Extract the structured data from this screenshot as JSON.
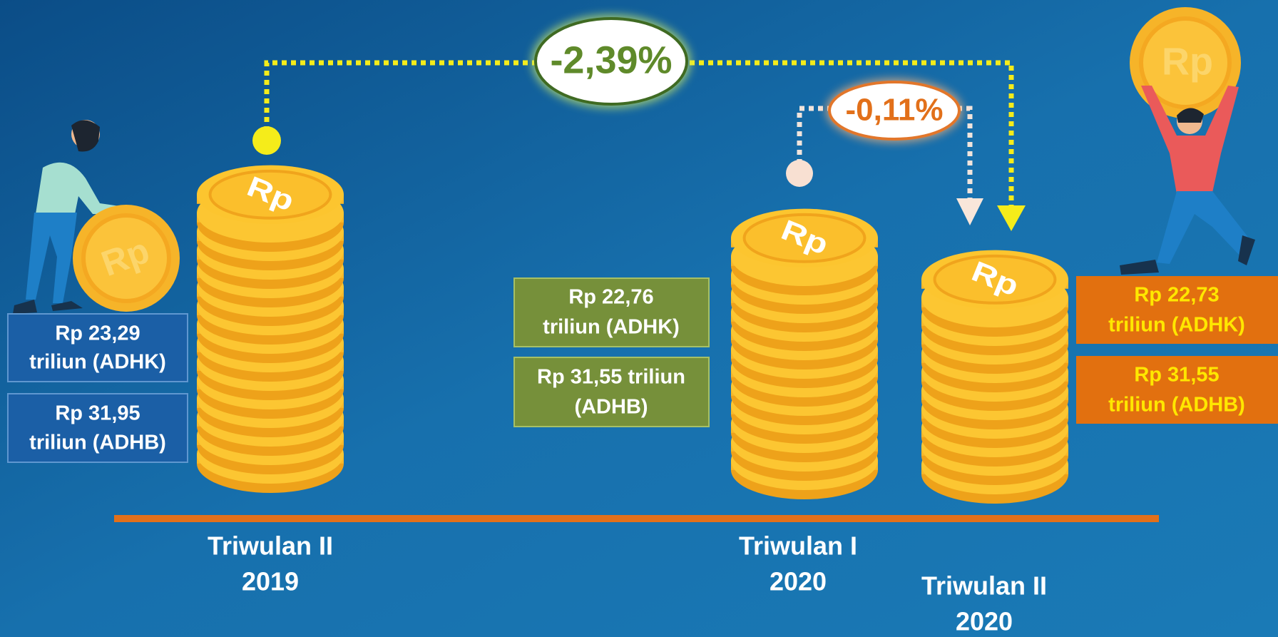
{
  "coin_label": "Rp",
  "changes": {
    "yoy": "-2,39%",
    "qoq": "-0,11%"
  },
  "periods": [
    {
      "lines": [
        "Triwulan II",
        "2019"
      ],
      "adhk": [
        "Rp 23,29",
        "triliun (ADHK)"
      ],
      "adhb": [
        "Rp 31,95",
        "triliun (ADHB)"
      ]
    },
    {
      "lines": [
        "Triwulan I",
        "2020"
      ],
      "adhk": [
        "Rp 22,76",
        "triliun (ADHK)"
      ],
      "adhb": [
        "Rp 31,55 triliun",
        "(ADHB)"
      ]
    },
    {
      "lines": [
        "Triwulan II",
        "2020"
      ],
      "adhk": [
        "Rp 22,73",
        "triliun (ADHK)"
      ],
      "adhb": [
        "Rp 31,55",
        "triliun (ADHB)"
      ]
    }
  ]
}
